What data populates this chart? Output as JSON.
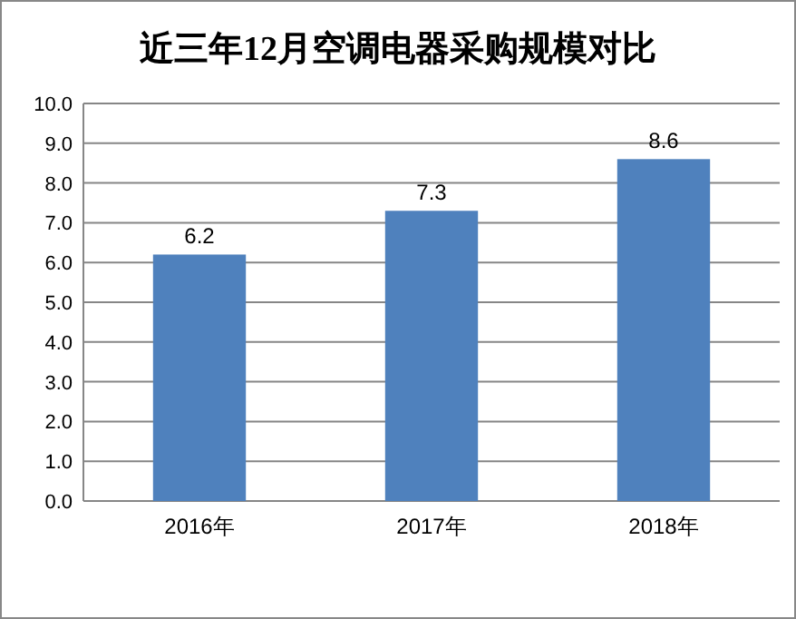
{
  "chart_data": {
    "type": "bar",
    "title": "近三年12月空调电器采购规模对比",
    "categories": [
      "2016年",
      "2017年",
      "2018年"
    ],
    "values": [
      6.2,
      7.3,
      8.6
    ],
    "color": "#4f81bd",
    "data_labels": true,
    "ylim": [
      0,
      10
    ],
    "yticks": [
      {
        "value": 0,
        "label": "0.0"
      },
      {
        "value": 1,
        "label": "1.0"
      },
      {
        "value": 2,
        "label": "2.0"
      },
      {
        "value": 3,
        "label": "3.0"
      },
      {
        "value": 4,
        "label": "4.0"
      },
      {
        "value": 5,
        "label": "5.0"
      },
      {
        "value": 6,
        "label": "6.0"
      },
      {
        "value": 7,
        "label": "7.0"
      },
      {
        "value": 8,
        "label": "8.0"
      },
      {
        "value": 9,
        "label": "9.0"
      },
      {
        "value": 10,
        "label": "10.0"
      }
    ],
    "grid": "y"
  }
}
